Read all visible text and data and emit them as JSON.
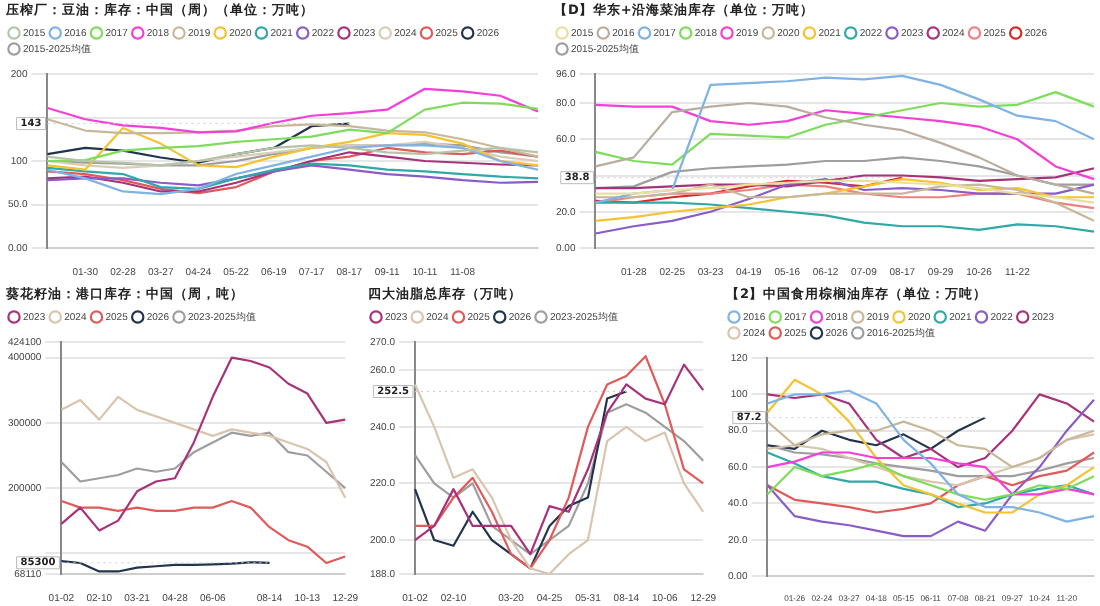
{
  "chart_data": [
    {
      "type": "line",
      "title": "压榨厂：豆油：库存：中国（周）（单位：万吨）",
      "legend": "top",
      "grid": "y",
      "marker": "none",
      "categories": [
        null,
        "01-30",
        "02-28",
        "03-27",
        "04-24",
        "05-22",
        "06-19",
        "07-17",
        "08-17",
        "09-11",
        "10-11",
        "11-08",
        null,
        null
      ],
      "ylim": [
        0,
        200
      ],
      "yticks": [
        {
          "value": 0,
          "label": "0.00"
        },
        {
          "value": 50,
          "label": "50.0"
        },
        100,
        {
          "value": 150,
          "label": null
        },
        200
      ],
      "annotations": [
        {
          "text": "143",
          "x": "08-17",
          "y": 143
        }
      ],
      "series": [
        {
          "name": "2015",
          "color": "#b5c4a8",
          "values": [
            105,
            100,
            98,
            95,
            100,
            108,
            115,
            118,
            115,
            110,
            108,
            112,
            115,
            110
          ]
        },
        {
          "name": "2016",
          "color": "#7fb2e5",
          "values": [
            90,
            80,
            65,
            62,
            68,
            85,
            95,
            105,
            115,
            118,
            118,
            115,
            100,
            90
          ]
        },
        {
          "name": "2017",
          "color": "#7ddc5a",
          "values": [
            100,
            101,
            112,
            115,
            117,
            122,
            125,
            128,
            136,
            132,
            159,
            167,
            166,
            160
          ]
        },
        {
          "name": "2018",
          "color": "#f23fd6",
          "values": [
            161,
            148,
            141,
            138,
            133,
            134,
            144,
            152,
            155,
            159,
            183,
            180,
            175,
            157
          ]
        },
        {
          "name": "2019",
          "color": "#c8b89a",
          "values": [
            148,
            135,
            132,
            132,
            133,
            135,
            140,
            142,
            140,
            135,
            133,
            125,
            115,
            105
          ]
        },
        {
          "name": "2020",
          "color": "#f5c231",
          "values": [
            95,
            90,
            138,
            120,
            95,
            93,
            105,
            115,
            122,
            132,
            130,
            120,
            100,
            95
          ]
        },
        {
          "name": "2021",
          "color": "#2fa8a8",
          "values": [
            92,
            88,
            85,
            70,
            68,
            80,
            90,
            97,
            95,
            90,
            88,
            85,
            82,
            80
          ]
        },
        {
          "name": "2022",
          "color": "#8a5cc8",
          "values": [
            78,
            80,
            80,
            75,
            72,
            80,
            88,
            95,
            90,
            85,
            82,
            78,
            75,
            76
          ]
        },
        {
          "name": "2023",
          "color": "#a8327a",
          "values": [
            80,
            82,
            75,
            65,
            65,
            75,
            88,
            100,
            110,
            105,
            100,
            98,
            96,
            95
          ]
        },
        {
          "name": "2024",
          "color": "#d9cdb8",
          "values": [
            100,
            95,
            92,
            95,
            100,
            105,
            110,
            115,
            118,
            118,
            122,
            115,
            105,
            100
          ]
        },
        {
          "name": "2025",
          "color": "#e05a5a",
          "values": [
            88,
            85,
            78,
            68,
            63,
            70,
            88,
            100,
            105,
            115,
            110,
            108,
            112,
            105
          ]
        },
        {
          "name": "2026",
          "color": "#22334d",
          "values": [
            108,
            115,
            112,
            104,
            98,
            108,
            115,
            140,
            143,
            null,
            null,
            null,
            null,
            null
          ]
        },
        {
          "name": "2015-2025均值",
          "color": "#9e9e9e",
          "values": [
            100,
            98,
            97,
            95,
            95,
            100,
            108,
            115,
            118,
            118,
            120,
            118,
            110,
            105
          ]
        }
      ]
    },
    {
      "type": "line",
      "title": "【D】华东+沿海菜油库存（单位：万吨）",
      "legend": "top",
      "grid": "y",
      "marker": "none",
      "categories": [
        null,
        "01-28",
        "02-25",
        "03-23",
        "04-19",
        "05-16",
        "06-12",
        "07-09",
        "08-17",
        "09-29",
        "10-26",
        "11-22",
        null,
        null
      ],
      "ylim": [
        0,
        96
      ],
      "yticks": [
        {
          "value": 0,
          "label": "0.00"
        },
        {
          "value": 20,
          "label": "20.0"
        },
        {
          "value": 40,
          "label": null
        },
        {
          "value": 60,
          "label": "60.0"
        },
        {
          "value": 80,
          "label": "80.0"
        },
        {
          "value": 96,
          "label": "96.0"
        }
      ],
      "annotations": [
        {
          "text": "38.8",
          "x": "08-17",
          "y": 38.8
        }
      ],
      "series": [
        {
          "name": "2015",
          "color": "#e8e0a0",
          "values": [
            30,
            30,
            32,
            33,
            35,
            36,
            37,
            37,
            36,
            35,
            33,
            30,
            28,
            25
          ]
        },
        {
          "name": "2016",
          "color": "#b8ada0",
          "values": [
            45,
            50,
            75,
            78,
            80,
            78,
            72,
            68,
            65,
            58,
            50,
            40,
            35,
            30
          ]
        },
        {
          "name": "2017",
          "color": "#7fb2e5",
          "values": [
            25,
            30,
            32,
            90,
            91,
            92,
            94,
            93,
            95,
            90,
            82,
            73,
            70,
            60
          ]
        },
        {
          "name": "2018",
          "color": "#7ddc5a",
          "values": [
            53,
            48,
            46,
            63,
            62,
            61,
            68,
            72,
            76,
            80,
            78,
            79,
            86,
            78
          ]
        },
        {
          "name": "2019",
          "color": "#f23fd6",
          "values": [
            79,
            78,
            78,
            70,
            68,
            70,
            76,
            74,
            72,
            70,
            67,
            60,
            45,
            38
          ]
        },
        {
          "name": "2020",
          "color": "#c8b89a",
          "values": [
            28,
            28,
            30,
            35,
            28,
            28,
            30,
            30,
            30,
            34,
            35,
            32,
            25,
            15
          ]
        },
        {
          "name": "2021",
          "color": "#f5c231",
          "values": [
            15,
            17,
            20,
            22,
            24,
            28,
            30,
            34,
            38,
            36,
            32,
            33,
            28,
            28
          ]
        },
        {
          "name": "2022",
          "color": "#2fa8a8",
          "values": [
            25,
            25,
            25,
            24,
            22,
            20,
            18,
            14,
            12,
            12,
            10,
            13,
            12,
            9
          ]
        },
        {
          "name": "2023",
          "color": "#8a5cc8",
          "values": [
            8,
            12,
            15,
            20,
            27,
            35,
            38,
            32,
            33,
            32,
            30,
            30,
            30,
            35
          ]
        },
        {
          "name": "2024",
          "color": "#a8327a",
          "values": [
            33,
            33,
            34,
            35,
            35,
            34,
            37,
            40,
            40,
            39,
            37,
            38,
            39,
            44
          ]
        },
        {
          "name": "2025",
          "color": "#f08080",
          "values": [
            25,
            28,
            30,
            30,
            32,
            35,
            34,
            30,
            28,
            28,
            30,
            30,
            25,
            22
          ]
        },
        {
          "name": "2026",
          "color": "#d42a2a",
          "values": [
            26,
            25,
            28,
            30,
            34,
            37,
            36,
            34,
            38.8,
            null,
            null,
            null,
            null,
            null
          ]
        },
        {
          "name": "2015-2025均值",
          "color": "#9e9e9e",
          "values": [
            33,
            34,
            42,
            44,
            45,
            46,
            48,
            48,
            50,
            48,
            45,
            40,
            35,
            35
          ]
        }
      ]
    },
    {
      "type": "line",
      "title": "葵花籽油：港口库存：中国（周，吨）",
      "legend": "top",
      "grid": "y",
      "marker": "none",
      "categories": [
        "01-02",
        null,
        "02-10",
        null,
        "03-21",
        null,
        "04-28",
        null,
        "06-06",
        null,
        null,
        "08-14",
        null,
        "10-13",
        null,
        "12-29"
      ],
      "ylim": [
        68110,
        424100
      ],
      "yticks": [
        68110,
        {
          "value": 100000,
          "label": null
        },
        200000,
        300000,
        400000,
        424100
      ],
      "annotations": [
        {
          "text": "85300",
          "x": "08-14",
          "y": 85300
        }
      ],
      "series": [
        {
          "name": "2023",
          "color": "#a8327a",
          "values": [
            145000,
            170000,
            135000,
            150000,
            195000,
            210000,
            215000,
            270000,
            340000,
            400000,
            395000,
            385000,
            360000,
            345000,
            300000,
            305000
          ]
        },
        {
          "name": "2024",
          "color": "#d9c5ad",
          "values": [
            320000,
            335000,
            305000,
            340000,
            320000,
            310000,
            300000,
            290000,
            280000,
            290000,
            285000,
            280000,
            270000,
            260000,
            240000,
            185000
          ]
        },
        {
          "name": "2025",
          "color": "#e05a5a",
          "values": [
            180000,
            170000,
            170000,
            165000,
            170000,
            165000,
            165000,
            170000,
            170000,
            180000,
            170000,
            140000,
            120000,
            110000,
            85000,
            95000
          ]
        },
        {
          "name": "2026",
          "color": "#22334d",
          "values": [
            88000,
            85000,
            72000,
            72000,
            78000,
            80000,
            82000,
            82000,
            83000,
            84000,
            86000,
            85300,
            null,
            null,
            null,
            null
          ]
        },
        {
          "name": "2023-2025均值",
          "color": "#9e9e9e",
          "values": [
            240000,
            210000,
            215000,
            220000,
            230000,
            225000,
            230000,
            255000,
            270000,
            285000,
            280000,
            285000,
            255000,
            250000,
            225000,
            200000
          ]
        }
      ]
    },
    {
      "type": "line",
      "title": "四大油脂总库存（万吨）",
      "legend": "top",
      "grid": "y",
      "marker": "none",
      "categories": [
        "01-02",
        null,
        "02-10",
        null,
        null,
        "03-20",
        null,
        "04-25",
        null,
        "05-31",
        null,
        "08-14",
        null,
        "10-06",
        null,
        "12-29"
      ],
      "ylim": [
        188,
        270
      ],
      "yticks": [
        {
          "value": 188,
          "label": "188.0"
        },
        {
          "value": 200,
          "label": "200.0"
        },
        {
          "value": 220,
          "label": "220.0"
        },
        {
          "value": 240,
          "label": "240.0"
        },
        {
          "value": 260,
          "label": "260.0"
        },
        {
          "value": 270,
          "label": "270.0"
        }
      ],
      "annotations": [
        {
          "text": "252.5",
          "x": "08-14",
          "y": 252.5
        }
      ],
      "series": [
        {
          "name": "2023",
          "color": "#a8327a",
          "values": [
            200,
            205,
            218,
            205,
            205,
            205,
            195,
            212,
            210,
            225,
            245,
            255,
            250,
            248,
            262,
            253
          ]
        },
        {
          "name": "2024",
          "color": "#d9c5ad",
          "values": [
            255,
            240,
            222,
            225,
            215,
            200,
            190,
            188,
            195,
            200,
            235,
            240,
            235,
            238,
            220,
            210
          ]
        },
        {
          "name": "2025",
          "color": "#e05a5a",
          "values": [
            205,
            205,
            215,
            222,
            210,
            195,
            190,
            200,
            215,
            240,
            255,
            258,
            265,
            248,
            225,
            220
          ]
        },
        {
          "name": "2026",
          "color": "#22334d",
          "values": [
            218,
            200,
            198,
            210,
            200,
            195,
            190,
            205,
            212,
            215,
            250,
            252.5,
            null,
            null,
            null,
            null
          ]
        },
        {
          "name": "2023-2025均值",
          "color": "#9e9e9e",
          "values": [
            230,
            220,
            215,
            220,
            205,
            200,
            195,
            200,
            205,
            220,
            245,
            248,
            245,
            240,
            235,
            228
          ]
        }
      ]
    },
    {
      "type": "line",
      "title": "【2】中国食用棕榈油库存（单位：万吨）",
      "legend": "top",
      "grid": "y",
      "marker": "none",
      "categories": [
        null,
        "01-26",
        "02-24",
        "03-27",
        "04-18",
        "05-15",
        "06-11",
        "07-08",
        "08-21",
        "09-27",
        "10-24",
        "11-20",
        null
      ],
      "ylim": [
        0,
        120
      ],
      "yticks": [
        {
          "value": 0,
          "label": "0.00"
        },
        {
          "value": 20,
          "label": "20.0"
        },
        {
          "value": 40,
          "label": "40.0"
        },
        {
          "value": 60,
          "label": "60.0"
        },
        {
          "value": 80,
          "label": "80.0"
        },
        100,
        120
      ],
      "annotations": [
        {
          "text": "87.2",
          "x": "08-21",
          "y": 87.2
        }
      ],
      "series": [
        {
          "name": "2016",
          "color": "#7fb2e5",
          "values": [
            95,
            100,
            100,
            102,
            95,
            75,
            62,
            45,
            38,
            38,
            35,
            30,
            33
          ]
        },
        {
          "name": "2017",
          "color": "#7ddc5a",
          "values": [
            45,
            60,
            55,
            58,
            62,
            55,
            50,
            45,
            42,
            45,
            50,
            48,
            55
          ]
        },
        {
          "name": "2018",
          "color": "#f23fd6",
          "values": [
            60,
            63,
            68,
            68,
            65,
            65,
            65,
            62,
            60,
            45,
            45,
            48,
            45
          ]
        },
        {
          "name": "2019",
          "color": "#c8b89a",
          "values": [
            85,
            72,
            78,
            80,
            80,
            85,
            80,
            72,
            70,
            60,
            65,
            75,
            80
          ]
        },
        {
          "name": "2020",
          "color": "#f5c231",
          "values": [
            90,
            108,
            100,
            85,
            65,
            50,
            45,
            40,
            35,
            35,
            45,
            50,
            60
          ]
        },
        {
          "name": "2021",
          "color": "#2fa8a8",
          "values": [
            68,
            62,
            55,
            52,
            52,
            48,
            45,
            38,
            40,
            45,
            48,
            50,
            45
          ]
        },
        {
          "name": "2022",
          "color": "#8a5cc8",
          "values": [
            50,
            33,
            30,
            28,
            25,
            22,
            22,
            30,
            25,
            45,
            60,
            80,
            97
          ]
        },
        {
          "name": "2023",
          "color": "#a8327a",
          "values": [
            100,
            98,
            100,
            95,
            75,
            65,
            70,
            60,
            65,
            80,
            100,
            95,
            85
          ]
        },
        {
          "name": "2024",
          "color": "#d9c5ad",
          "values": [
            70,
            72,
            70,
            65,
            60,
            55,
            52,
            50,
            55,
            60,
            65,
            75,
            78
          ]
        },
        {
          "name": "2025",
          "color": "#e05a5a",
          "values": [
            50,
            42,
            40,
            38,
            35,
            37,
            40,
            50,
            55,
            50,
            55,
            58,
            68
          ]
        },
        {
          "name": "2026",
          "color": "#22334d",
          "values": [
            72,
            70,
            80,
            75,
            72,
            78,
            70,
            80,
            87.2,
            null,
            null,
            null,
            null
          ]
        },
        {
          "name": "2016-2025均值",
          "color": "#9e9e9e",
          "values": [
            72,
            68,
            67,
            65,
            62,
            60,
            58,
            55,
            55,
            55,
            58,
            62,
            65
          ]
        }
      ]
    }
  ]
}
